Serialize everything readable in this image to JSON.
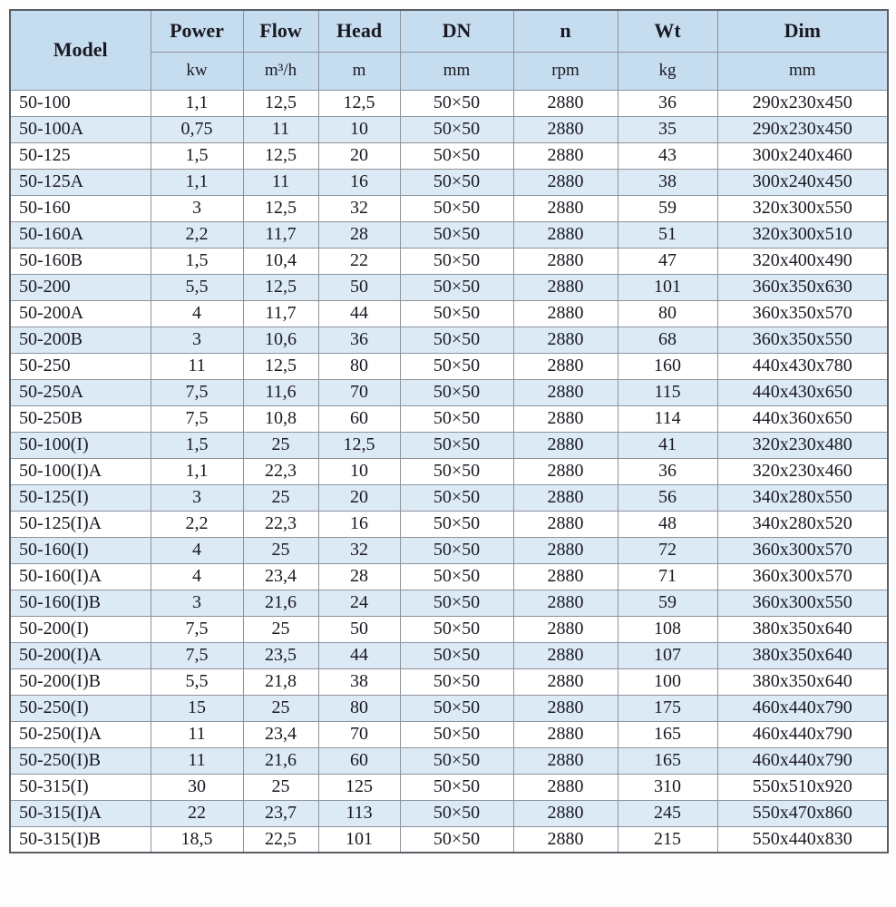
{
  "colors": {
    "header_bg": "#c6ddf0",
    "row_bg": "#ffffff",
    "row_alt_bg": "#dceaf6",
    "border": "#8d939b",
    "outer_border": "#5a5f66",
    "text": "#191922"
  },
  "chart_data": {
    "type": "table",
    "columns": [
      {
        "label": "Model",
        "unit": ""
      },
      {
        "label": "Power",
        "unit": "kw"
      },
      {
        "label": "Flow",
        "unit": "m³/h"
      },
      {
        "label": "Head",
        "unit": "m"
      },
      {
        "label": "DN",
        "unit": "mm"
      },
      {
        "label": "n",
        "unit": "rpm"
      },
      {
        "label": "Wt",
        "unit": "kg"
      },
      {
        "label": "Dim",
        "unit": "mm"
      }
    ],
    "rows": [
      [
        "50-100",
        "1,1",
        "12,5",
        "12,5",
        "50×50",
        "2880",
        "36",
        "290x230x450"
      ],
      [
        "50-100A",
        "0,75",
        "11",
        "10",
        "50×50",
        "2880",
        "35",
        "290x230x450"
      ],
      [
        "50-125",
        "1,5",
        "12,5",
        "20",
        "50×50",
        "2880",
        "43",
        "300x240x460"
      ],
      [
        "50-125A",
        "1,1",
        "11",
        "16",
        "50×50",
        "2880",
        "38",
        "300x240x450"
      ],
      [
        "50-160",
        "3",
        "12,5",
        "32",
        "50×50",
        "2880",
        "59",
        "320x300x550"
      ],
      [
        "50-160A",
        "2,2",
        "11,7",
        "28",
        "50×50",
        "2880",
        "51",
        "320x300x510"
      ],
      [
        "50-160B",
        "1,5",
        "10,4",
        "22",
        "50×50",
        "2880",
        "47",
        "320x400x490"
      ],
      [
        "50-200",
        "5,5",
        "12,5",
        "50",
        "50×50",
        "2880",
        "101",
        "360x350x630"
      ],
      [
        "50-200A",
        "4",
        "11,7",
        "44",
        "50×50",
        "2880",
        "80",
        "360x350x570"
      ],
      [
        "50-200B",
        "3",
        "10,6",
        "36",
        "50×50",
        "2880",
        "68",
        "360x350x550"
      ],
      [
        "50-250",
        "11",
        "12,5",
        "80",
        "50×50",
        "2880",
        "160",
        "440x430x780"
      ],
      [
        "50-250A",
        "7,5",
        "11,6",
        "70",
        "50×50",
        "2880",
        "115",
        "440x430x650"
      ],
      [
        "50-250B",
        "7,5",
        "10,8",
        "60",
        "50×50",
        "2880",
        "114",
        "440x360x650"
      ],
      [
        "50-100(I)",
        "1,5",
        "25",
        "12,5",
        "50×50",
        "2880",
        "41",
        "320x230x480"
      ],
      [
        "50-100(I)A",
        "1,1",
        "22,3",
        "10",
        "50×50",
        "2880",
        "36",
        "320x230x460"
      ],
      [
        "50-125(I)",
        "3",
        "25",
        "20",
        "50×50",
        "2880",
        "56",
        "340x280x550"
      ],
      [
        "50-125(I)A",
        "2,2",
        "22,3",
        "16",
        "50×50",
        "2880",
        "48",
        "340x280x520"
      ],
      [
        "50-160(I)",
        "4",
        "25",
        "32",
        "50×50",
        "2880",
        "72",
        "360x300x570"
      ],
      [
        "50-160(I)A",
        "4",
        "23,4",
        "28",
        "50×50",
        "2880",
        "71",
        "360x300x570"
      ],
      [
        "50-160(I)B",
        "3",
        "21,6",
        "24",
        "50×50",
        "2880",
        "59",
        "360x300x550"
      ],
      [
        "50-200(I)",
        "7,5",
        "25",
        "50",
        "50×50",
        "2880",
        "108",
        "380x350x640"
      ],
      [
        "50-200(I)A",
        "7,5",
        "23,5",
        "44",
        "50×50",
        "2880",
        "107",
        "380x350x640"
      ],
      [
        "50-200(I)B",
        "5,5",
        "21,8",
        "38",
        "50×50",
        "2880",
        "100",
        "380x350x640"
      ],
      [
        "50-250(I)",
        "15",
        "25",
        "80",
        "50×50",
        "2880",
        "175",
        "460x440x790"
      ],
      [
        "50-250(I)A",
        "11",
        "23,4",
        "70",
        "50×50",
        "2880",
        "165",
        "460x440x790"
      ],
      [
        "50-250(I)B",
        "11",
        "21,6",
        "60",
        "50×50",
        "2880",
        "165",
        "460x440x790"
      ],
      [
        "50-315(I)",
        "30",
        "25",
        "125",
        "50×50",
        "2880",
        "310",
        "550x510x920"
      ],
      [
        "50-315(I)A",
        "22",
        "23,7",
        "113",
        "50×50",
        "2880",
        "245",
        "550x470x860"
      ],
      [
        "50-315(I)B",
        "18,5",
        "22,5",
        "101",
        "50×50",
        "2880",
        "215",
        "550x440x830"
      ]
    ]
  }
}
